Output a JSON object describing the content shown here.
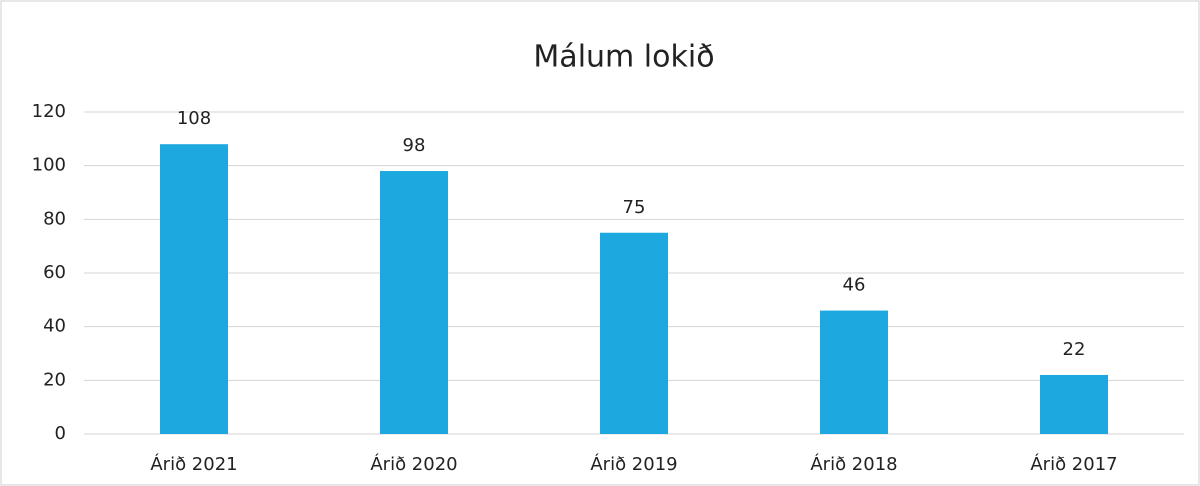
{
  "chart_data": {
    "type": "bar",
    "title": "Málum lokið",
    "categories": [
      "Árið 2021",
      "Árið 2020",
      "Árið 2019",
      "Árið 2018",
      "Árið 2017"
    ],
    "values": [
      108,
      98,
      75,
      46,
      22
    ],
    "color": "#1ea8e0",
    "ylim": [
      0,
      120
    ],
    "yticks": [
      0,
      20,
      40,
      60,
      80,
      100,
      120
    ],
    "grid": true
  }
}
